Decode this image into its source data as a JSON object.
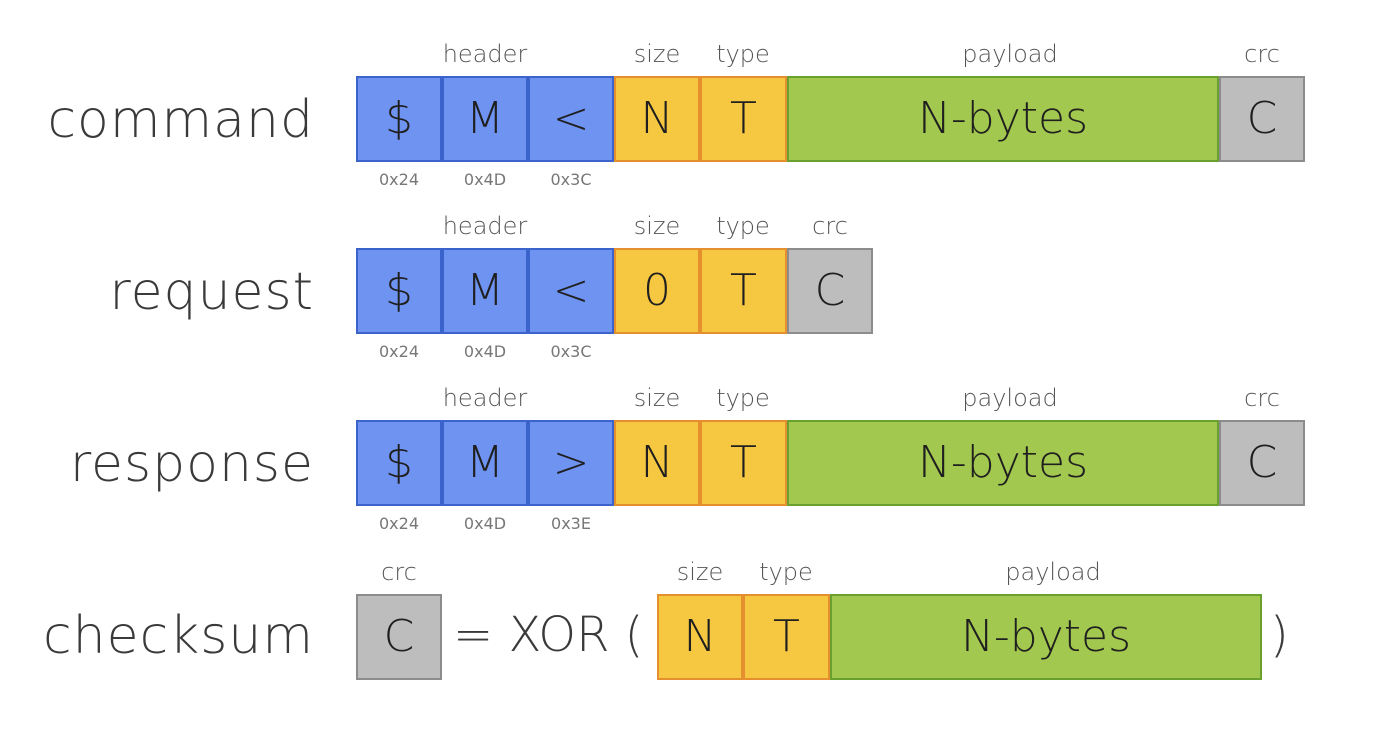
{
  "labels": {
    "header": "header",
    "size": "size",
    "type": "type",
    "payload": "payload",
    "crc": "crc"
  },
  "rows": {
    "command": {
      "name": "command",
      "cells": [
        "$",
        "M",
        "<",
        "N",
        "T",
        "N-bytes",
        "C"
      ],
      "hex": [
        "0x24",
        "0x4D",
        "0x3C"
      ]
    },
    "request": {
      "name": "request",
      "cells": [
        "$",
        "M",
        "<",
        "0",
        "T",
        "C"
      ],
      "hex": [
        "0x24",
        "0x4D",
        "0x3C"
      ]
    },
    "response": {
      "name": "response",
      "cells": [
        "$",
        "M",
        ">",
        "N",
        "T",
        "N-bytes",
        "C"
      ],
      "hex": [
        "0x24",
        "0x4D",
        "0x3E"
      ]
    },
    "checksum": {
      "name": "checksum",
      "crc_cell": "C",
      "equals_xor": "= XOR (",
      "cells": [
        "N",
        "T",
        "N-bytes"
      ],
      "close": ")"
    }
  },
  "colors": {
    "header": "#6f93f0",
    "size_type": "#f6c842",
    "payload": "#a2c84f",
    "crc": "#bdbdbd"
  }
}
